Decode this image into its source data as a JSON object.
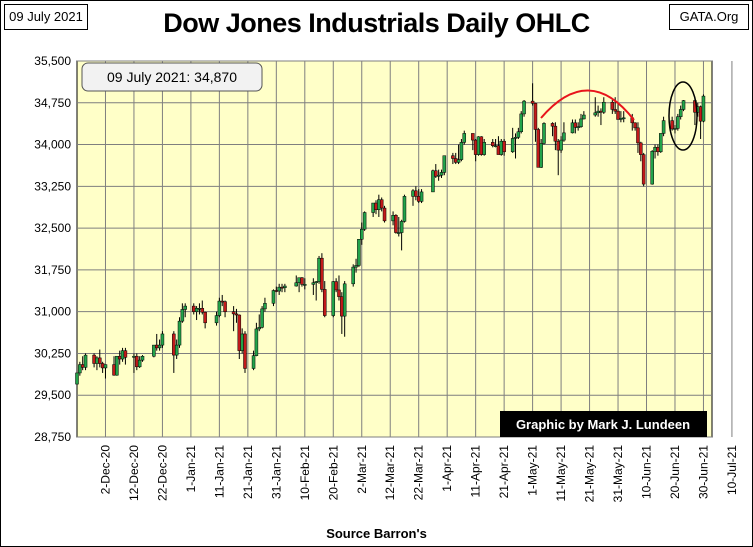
{
  "header": {
    "date_label": "09 July 2021",
    "site": "GATA.Org",
    "title": "Dow Jones Industrials Daily OHLC"
  },
  "footer": {
    "source": "Source  Barron's"
  },
  "colors": {
    "plot_bg": "#ffffc8",
    "grid": "#7f7f7f",
    "up": "#22a34a",
    "down": "#c21a1a",
    "wick": "#000000",
    "arc": "#e8141c",
    "credit_bg": "#000000",
    "credit_text": "#ffffff"
  },
  "chart_data": {
    "type": "candlestick",
    "title": "Dow Jones Industrials Daily OHLC",
    "annotation_box": "09 July 2021: 34,870",
    "credit": "Graphic by Mark J. Lundeen",
    "ylim": [
      28750,
      35500
    ],
    "y_ticks": [
      28750,
      29500,
      30250,
      31000,
      31750,
      32500,
      33250,
      34000,
      34750,
      35500
    ],
    "y_tick_labels": [
      "28,750",
      "29,500",
      "30,250",
      "31,000",
      "31,750",
      "32,500",
      "33,250",
      "34,000",
      "34,750",
      "35,500"
    ],
    "x_tick_labels": [
      "2-Dec-20",
      "12-Dec-20",
      "22-Dec-20",
      "1-Jan-21",
      "11-Jan-21",
      "21-Jan-21",
      "31-Jan-21",
      "10-Feb-21",
      "20-Feb-21",
      "2-Mar-21",
      "12-Mar-21",
      "22-Mar-21",
      "1-Apr-21",
      "11-Apr-21",
      "21-Apr-21",
      "1-May-21",
      "11-May-21",
      "21-May-21",
      "31-May-21",
      "10-Jun-21",
      "20-Jun-21",
      "30-Jun-21",
      "10-Jul-21"
    ],
    "x_start": "2020-12-01",
    "x_end": "2021-07-12",
    "candles": [
      [
        "2020-12-01",
        29700,
        30050,
        29650,
        29900
      ],
      [
        "2020-12-02",
        29900,
        30100,
        29850,
        30050
      ],
      [
        "2020-12-03",
        30050,
        30200,
        29950,
        30000
      ],
      [
        "2020-12-04",
        30000,
        30250,
        29950,
        30220
      ],
      [
        "2020-12-07",
        30220,
        30250,
        30000,
        30070
      ],
      [
        "2020-12-08",
        30070,
        30200,
        29950,
        30170
      ],
      [
        "2020-12-09",
        30170,
        30320,
        30000,
        30070
      ],
      [
        "2020-12-10",
        30070,
        30100,
        29900,
        29990
      ],
      [
        "2020-12-11",
        29990,
        30050,
        29800,
        30050
      ],
      [
        "2020-12-14",
        30050,
        30200,
        29850,
        29860
      ],
      [
        "2020-12-15",
        29860,
        30200,
        29850,
        30200
      ],
      [
        "2020-12-16",
        30200,
        30300,
        30050,
        30150
      ],
      [
        "2020-12-17",
        30150,
        30350,
        30100,
        30300
      ],
      [
        "2020-12-18",
        30300,
        30350,
        30050,
        30180
      ],
      [
        "2020-12-21",
        30180,
        30250,
        29900,
        30200
      ],
      [
        "2020-12-22",
        30200,
        30250,
        29950,
        30010
      ],
      [
        "2020-12-23",
        30010,
        30200,
        29990,
        30130
      ],
      [
        "2020-12-24",
        30130,
        30220,
        30100,
        30200
      ],
      [
        "2020-12-28",
        30200,
        30400,
        30180,
        30400
      ],
      [
        "2020-12-29",
        30400,
        30600,
        30300,
        30350
      ],
      [
        "2020-12-30",
        30350,
        30500,
        30300,
        30400
      ],
      [
        "2020-12-31",
        30400,
        30650,
        30350,
        30600
      ],
      [
        "2021-01-04",
        30600,
        30650,
        29900,
        30220
      ],
      [
        "2021-01-05",
        30220,
        30500,
        30150,
        30400
      ],
      [
        "2021-01-06",
        30400,
        30900,
        30350,
        30830
      ],
      [
        "2021-01-07",
        30830,
        31150,
        30800,
        31040
      ],
      [
        "2021-01-08",
        31040,
        31150,
        30900,
        31100
      ],
      [
        "2021-01-11",
        31100,
        31150,
        30950,
        31000
      ],
      [
        "2021-01-12",
        31000,
        31100,
        30850,
        31060
      ],
      [
        "2021-01-13",
        31060,
        31150,
        30950,
        31060
      ],
      [
        "2021-01-14",
        31060,
        31200,
        30950,
        30990
      ],
      [
        "2021-01-15",
        30990,
        31000,
        30700,
        30800
      ],
      [
        "2021-01-19",
        30800,
        31000,
        30750,
        30930
      ],
      [
        "2021-01-20",
        30930,
        31250,
        30900,
        31190
      ],
      [
        "2021-01-21",
        31190,
        31300,
        31100,
        31180
      ],
      [
        "2021-01-22",
        31180,
        31200,
        30900,
        31000
      ],
      [
        "2021-01-25",
        31000,
        31100,
        30650,
        30960
      ],
      [
        "2021-01-26",
        30960,
        31050,
        30800,
        30940
      ],
      [
        "2021-01-27",
        30940,
        30950,
        30150,
        30300
      ],
      [
        "2021-01-28",
        30300,
        30700,
        30250,
        30600
      ],
      [
        "2021-01-29",
        30600,
        30650,
        29900,
        29980
      ],
      [
        "2021-02-01",
        29980,
        30300,
        29950,
        30210
      ],
      [
        "2021-02-02",
        30210,
        30800,
        30200,
        30690
      ],
      [
        "2021-02-03",
        30690,
        30950,
        30650,
        30720
      ],
      [
        "2021-02-04",
        30720,
        31100,
        30700,
        31050
      ],
      [
        "2021-02-05",
        31050,
        31250,
        31000,
        31150
      ],
      [
        "2021-02-08",
        31150,
        31400,
        31100,
        31380
      ],
      [
        "2021-02-09",
        31380,
        31450,
        31350,
        31370
      ],
      [
        "2021-02-10",
        31370,
        31500,
        31300,
        31440
      ],
      [
        "2021-02-11",
        31440,
        31500,
        31350,
        31430
      ],
      [
        "2021-02-12",
        31430,
        31500,
        31350,
        31460
      ],
      [
        "2021-02-16",
        31460,
        31650,
        31450,
        31520
      ],
      [
        "2021-02-17",
        31520,
        31600,
        31350,
        31610
      ],
      [
        "2021-02-18",
        31610,
        31620,
        31450,
        31490
      ],
      [
        "2021-02-19",
        31490,
        31600,
        31400,
        31490
      ],
      [
        "2021-02-22",
        31490,
        31600,
        31300,
        31520
      ],
      [
        "2021-02-23",
        31520,
        31550,
        31200,
        31540
      ],
      [
        "2021-02-24",
        31540,
        32000,
        31500,
        31960
      ],
      [
        "2021-02-25",
        31960,
        32050,
        31350,
        31400
      ],
      [
        "2021-02-26",
        31400,
        31550,
        30900,
        30930
      ],
      [
        "2021-03-01",
        30930,
        31550,
        30900,
        31540
      ],
      [
        "2021-03-02",
        31540,
        31600,
        31350,
        31390
      ],
      [
        "2021-03-03",
        31390,
        31650,
        31200,
        31270
      ],
      [
        "2021-03-04",
        31270,
        31350,
        30600,
        30920
      ],
      [
        "2021-03-05",
        30920,
        31550,
        30550,
        31500
      ],
      [
        "2021-03-08",
        31500,
        31850,
        31450,
        31800
      ],
      [
        "2021-03-09",
        31800,
        31950,
        31700,
        31830
      ],
      [
        "2021-03-10",
        31830,
        32300,
        31800,
        32300
      ],
      [
        "2021-03-11",
        32300,
        32600,
        32200,
        32480
      ],
      [
        "2021-03-12",
        32480,
        32800,
        32450,
        32780
      ],
      [
        "2021-03-15",
        32780,
        32950,
        32700,
        32950
      ],
      [
        "2021-03-16",
        32950,
        33000,
        32750,
        32830
      ],
      [
        "2021-03-17",
        32830,
        33100,
        32700,
        33010
      ],
      [
        "2021-03-18",
        33010,
        33050,
        32800,
        32860
      ],
      [
        "2021-03-19",
        32860,
        32900,
        32600,
        32630
      ],
      [
        "2021-03-22",
        32630,
        32800,
        32550,
        32730
      ],
      [
        "2021-03-23",
        32730,
        32750,
        32400,
        32420
      ],
      [
        "2021-03-24",
        32420,
        32700,
        32350,
        32420
      ],
      [
        "2021-03-25",
        32420,
        32650,
        32100,
        32620
      ],
      [
        "2021-03-26",
        32620,
        33100,
        32600,
        33070
      ],
      [
        "2021-03-29",
        33070,
        33200,
        32900,
        33170
      ],
      [
        "2021-03-30",
        33170,
        33250,
        33000,
        33070
      ],
      [
        "2021-03-31",
        33070,
        33200,
        32950,
        32980
      ],
      [
        "2021-04-01",
        32980,
        33200,
        32950,
        33150
      ],
      [
        "2021-04-05",
        33150,
        33550,
        33150,
        33530
      ],
      [
        "2021-04-06",
        33530,
        33650,
        33400,
        33430
      ],
      [
        "2021-04-07",
        33430,
        33550,
        33350,
        33450
      ],
      [
        "2021-04-08",
        33450,
        33550,
        33400,
        33500
      ],
      [
        "2021-04-09",
        33500,
        33800,
        33450,
        33800
      ],
      [
        "2021-04-12",
        33800,
        33850,
        33650,
        33750
      ],
      [
        "2021-04-13",
        33750,
        33850,
        33650,
        33680
      ],
      [
        "2021-04-14",
        33680,
        34000,
        33650,
        33730
      ],
      [
        "2021-04-15",
        33730,
        34100,
        33700,
        34040
      ],
      [
        "2021-04-16",
        34040,
        34250,
        34000,
        34200
      ],
      [
        "2021-04-19",
        34200,
        34200,
        33900,
        34080
      ],
      [
        "2021-04-20",
        34080,
        34100,
        33700,
        33820
      ],
      [
        "2021-04-21",
        33820,
        34150,
        33800,
        34140
      ],
      [
        "2021-04-22",
        34140,
        34150,
        33800,
        33820
      ],
      [
        "2021-04-23",
        33820,
        34100,
        33800,
        34040
      ],
      [
        "2021-04-26",
        34040,
        34100,
        33950,
        33980
      ],
      [
        "2021-04-27",
        33980,
        34100,
        33950,
        33980
      ],
      [
        "2021-04-28",
        33980,
        34150,
        33850,
        33820
      ],
      [
        "2021-04-29",
        33820,
        34100,
        33800,
        34060
      ],
      [
        "2021-04-30",
        34060,
        34100,
        33800,
        33870
      ],
      [
        "2021-05-03",
        33870,
        34300,
        33850,
        34110
      ],
      [
        "2021-05-04",
        34110,
        34200,
        33750,
        34130
      ],
      [
        "2021-05-05",
        34130,
        34300,
        34100,
        34230
      ],
      [
        "2021-05-06",
        34230,
        34600,
        34200,
        34550
      ],
      [
        "2021-05-07",
        34550,
        34800,
        34500,
        34780
      ],
      [
        "2021-05-10",
        34780,
        35100,
        34700,
        34740
      ],
      [
        "2021-05-11",
        34740,
        34750,
        34050,
        34270
      ],
      [
        "2021-05-12",
        34270,
        34300,
        33600,
        33590
      ],
      [
        "2021-05-13",
        33590,
        34100,
        33580,
        34020
      ],
      [
        "2021-05-14",
        34020,
        34400,
        34000,
        34380
      ],
      [
        "2021-05-17",
        34380,
        34400,
        34150,
        34330
      ],
      [
        "2021-05-18",
        34330,
        34400,
        33900,
        34060
      ],
      [
        "2021-05-19",
        34060,
        34100,
        33450,
        33900
      ],
      [
        "2021-05-20",
        33900,
        34150,
        33850,
        34080
      ],
      [
        "2021-05-21",
        34080,
        34400,
        34050,
        34210
      ],
      [
        "2021-05-24",
        34210,
        34450,
        34200,
        34390
      ],
      [
        "2021-05-25",
        34390,
        34450,
        34200,
        34310
      ],
      [
        "2021-05-26",
        34310,
        34400,
        34250,
        34320
      ],
      [
        "2021-05-27",
        34320,
        34550,
        34300,
        34460
      ],
      [
        "2021-05-28",
        34460,
        34600,
        34450,
        34530
      ],
      [
        "2021-06-01",
        34530,
        34850,
        34500,
        34570
      ],
      [
        "2021-06-02",
        34570,
        34700,
        34500,
        34600
      ],
      [
        "2021-06-03",
        34600,
        34650,
        34350,
        34580
      ],
      [
        "2021-06-04",
        34580,
        34850,
        34550,
        34760
      ],
      [
        "2021-06-07",
        34760,
        34800,
        34550,
        34630
      ],
      [
        "2021-06-08",
        34630,
        34850,
        34550,
        34600
      ],
      [
        "2021-06-09",
        34600,
        34750,
        34450,
        34450
      ],
      [
        "2021-06-10",
        34450,
        34600,
        34400,
        34470
      ],
      [
        "2021-06-11",
        34470,
        34600,
        34400,
        34480
      ],
      [
        "2021-06-14",
        34480,
        34550,
        34250,
        34390
      ],
      [
        "2021-06-15",
        34390,
        34400,
        34250,
        34300
      ],
      [
        "2021-06-16",
        34300,
        34400,
        33850,
        34030
      ],
      [
        "2021-06-17",
        34030,
        34050,
        33700,
        33820
      ],
      [
        "2021-06-18",
        33820,
        33850,
        33250,
        33290
      ],
      [
        "2021-06-21",
        33290,
        33900,
        33280,
        33880
      ],
      [
        "2021-06-22",
        33880,
        34000,
        33750,
        33950
      ],
      [
        "2021-06-23",
        33950,
        34000,
        33800,
        33870
      ],
      [
        "2021-06-24",
        33870,
        34200,
        33850,
        34200
      ],
      [
        "2021-06-25",
        34200,
        34500,
        34150,
        34430
      ],
      [
        "2021-06-28",
        34430,
        34500,
        34250,
        34280
      ],
      [
        "2021-06-29",
        34280,
        34350,
        34200,
        34290
      ],
      [
        "2021-06-30",
        34290,
        34550,
        34250,
        34500
      ],
      [
        "2021-07-01",
        34500,
        34700,
        34450,
        34630
      ],
      [
        "2021-07-02",
        34630,
        34800,
        34600,
        34790
      ],
      [
        "2021-07-06",
        34790,
        34850,
        34350,
        34580
      ],
      [
        "2021-07-07",
        34580,
        34750,
        34500,
        34680
      ],
      [
        "2021-07-08",
        34680,
        34700,
        34100,
        34420
      ],
      [
        "2021-07-09",
        34420,
        34900,
        34400,
        34870
      ]
    ]
  }
}
